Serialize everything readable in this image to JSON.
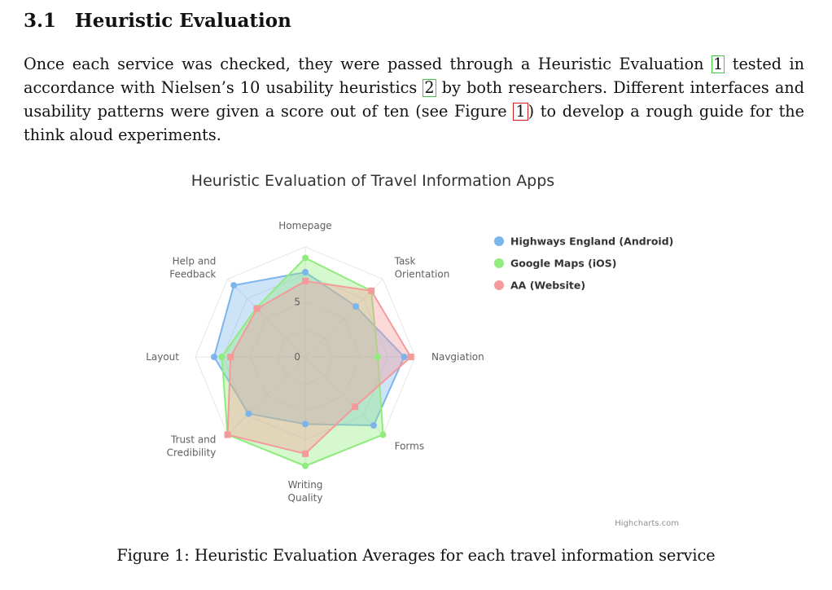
{
  "section": {
    "number": "3.1",
    "title": "Heuristic Evaluation"
  },
  "paragraph": {
    "part1": "Once each service was checked, they were passed through a Heuristic Evaluation ",
    "cite1": "1",
    "part2": " tested in accordance with Nielsen’s 10 usability heuristics ",
    "cite2": "2",
    "part3": " by both researchers. Different interfaces and usability patterns were given a score out of ten (see Figure ",
    "figref": "1",
    "part4": ") to develop a rough guide for the think aloud experiments."
  },
  "figure": {
    "caption": "Figure 1: Heuristic Evaluation Averages for each travel information service"
  },
  "chart_data": {
    "type": "radar",
    "title": "Heuristic Evaluation of Travel Information Apps",
    "credits": "Highcharts.com",
    "categories": [
      [
        "Homepage"
      ],
      [
        "Task",
        "Orientation"
      ],
      [
        "Navgiation"
      ],
      [
        "Forms"
      ],
      [
        "Writing",
        "Quality"
      ],
      [
        "Trust and",
        "Credibility"
      ],
      [
        "Layout"
      ],
      [
        "Help and",
        "Feedback"
      ]
    ],
    "radial_ticks": [
      "0",
      "5"
    ],
    "rmax": 10,
    "grid": true,
    "legend_position": "right",
    "series": [
      {
        "name": "Highways England (Android)",
        "color": "#7cb5ec",
        "marker": "circle",
        "values": [
          7.7,
          6.5,
          9.0,
          8.8,
          6.1,
          7.3,
          8.3,
          9.2
        ]
      },
      {
        "name": "Google Maps (iOS)",
        "color": "#90ed7d",
        "marker": "circle",
        "values": [
          9.0,
          8.5,
          6.6,
          10.0,
          9.9,
          10.0,
          7.6,
          6.3
        ]
      },
      {
        "name": "AA (Website)",
        "color": "#f7a35c",
        "marker": "square",
        "values": [
          6.9,
          8.5,
          9.6,
          6.4,
          8.8,
          10.0,
          6.8,
          6.2
        ],
        "display_color": "#f49a9a"
      }
    ]
  }
}
